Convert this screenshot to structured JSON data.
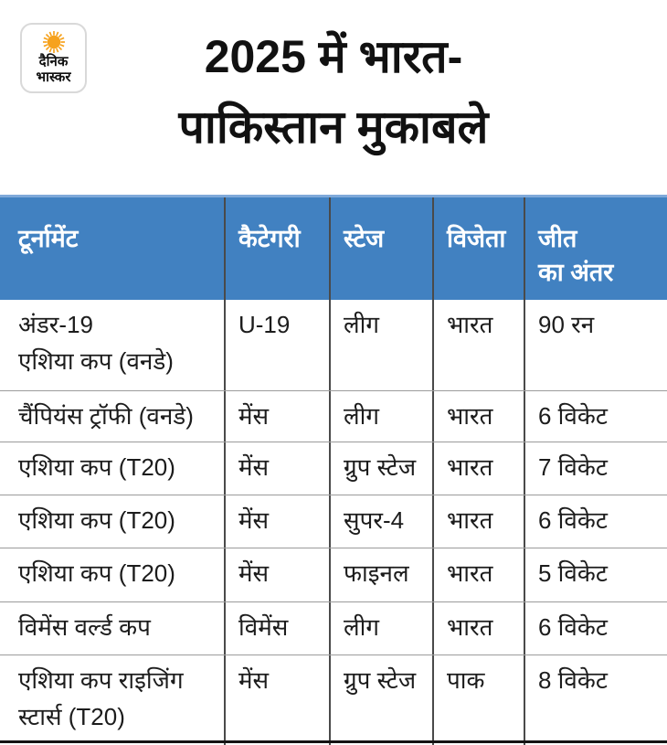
{
  "brand": {
    "name_line1": "दैनिक",
    "name_line2": "भास्कर",
    "sun_color": "#F6A21D"
  },
  "title": {
    "text": "2025 में भारत-\nपाकिस्तान मुकाबले"
  },
  "colors": {
    "background": "#FFFFFF",
    "header_bg": "#4181C1",
    "header_top_edge": "#7FA9D9",
    "header_text": "#FFFFFF",
    "body_text": "#1C1C1C",
    "vertical_divider": "#4A4A4A",
    "horizontal_divider": "#9B9B9B",
    "bottom_line": "#141414"
  },
  "table": {
    "headers": [
      "टूर्नामेंट",
      "कैटेगरी",
      "स्टेज",
      "विजेता",
      "जीत\nका अंतर"
    ],
    "rows": [
      [
        "अंडर-19\nएशिया कप (वनडे)",
        "U-19",
        "लीग",
        "भारत",
        "90 रन"
      ],
      [
        "चैंपियंस ट्रॉफी (वनडे)",
        "मेंस",
        "लीग",
        "भारत",
        "6 विकेट"
      ],
      [
        "एशिया कप (T20)",
        "मेंस",
        "ग्रुप स्टेज",
        "भारत",
        "7 विकेट"
      ],
      [
        "एशिया कप (T20)",
        "मेंस",
        "सुपर-4",
        "भारत",
        "6 विकेट"
      ],
      [
        "एशिया कप (T20)",
        "मेंस",
        "फाइनल",
        "भारत",
        "5 विकेट"
      ],
      [
        "विमेंस वर्ल्ड कप",
        "विमेंस",
        "लीग",
        "भारत",
        "6 विकेट"
      ],
      [
        "एशिया कप राइजिंग\nस्टार्स (T20)",
        "मेंस",
        "ग्रुप स्टेज",
        "पाक",
        "8 विकेट"
      ]
    ]
  },
  "chart_data": {
    "type": "table",
    "title": "2025 में भारत-पाकिस्तान मुकाबले",
    "columns": [
      "टूर्नामेंट",
      "कैटेगरी",
      "स्टेज",
      "विजेता",
      "जीत का अंतर"
    ],
    "rows": [
      {
        "tournament": "अंडर-19 एशिया कप (वनडे)",
        "category": "U-19",
        "stage": "लीग",
        "winner": "भारत",
        "margin": "90 रन"
      },
      {
        "tournament": "चैंपियंस ट्रॉफी (वनडे)",
        "category": "मेंस",
        "stage": "लीग",
        "winner": "भारत",
        "margin": "6 विकेट"
      },
      {
        "tournament": "एशिया कप (T20)",
        "category": "मेंस",
        "stage": "ग्रुप स्टेज",
        "winner": "भारत",
        "margin": "7 विकेट"
      },
      {
        "tournament": "एशिया कप (T20)",
        "category": "मेंस",
        "stage": "सुपर-4",
        "winner": "भारत",
        "margin": "6 विकेट"
      },
      {
        "tournament": "एशिया कप (T20)",
        "category": "मेंस",
        "stage": "फाइनल",
        "winner": "भारत",
        "margin": "5 विकेट"
      },
      {
        "tournament": "विमेंस वर्ल्ड कप",
        "category": "विमेंस",
        "stage": "लीग",
        "winner": "भारत",
        "margin": "6 विकेट"
      },
      {
        "tournament": "एशिया कप राइजिंग स्टार्स (T20)",
        "category": "मेंस",
        "stage": "ग्रुप स्टेज",
        "winner": "पाक",
        "margin": "8 विकेट"
      }
    ]
  }
}
